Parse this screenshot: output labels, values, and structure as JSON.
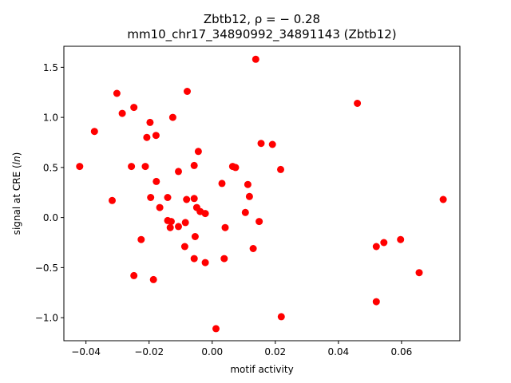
{
  "chart_data": {
    "type": "scatter",
    "title_line1": "Zbtb12, ρ = − 0.28",
    "title_line2": "mm10_chr17_34890992_34891143 (Zbtb12)",
    "xlabel": "motif activity",
    "ylabel": "signal at CRE (ln)",
    "xlim": [
      -0.047,
      0.0785
    ],
    "ylim": [
      -1.23,
      1.71
    ],
    "x_ticks": [
      -0.04,
      -0.02,
      0.0,
      0.02,
      0.04,
      0.06
    ],
    "x_tick_labels": [
      "−0.04",
      "−0.02",
      "0.00",
      "0.02",
      "0.04",
      "0.06"
    ],
    "y_ticks": [
      -1.0,
      -0.5,
      0.0,
      0.5,
      1.0,
      1.5
    ],
    "y_tick_labels": [
      "−1.0",
      "−0.5",
      "0.0",
      "0.5",
      "1.0",
      "1.5"
    ],
    "grid": false,
    "marker_color": "#ff0000",
    "points": [
      {
        "x": 0.0138,
        "y": 1.58
      },
      {
        "x": 0.046,
        "y": 1.14
      },
      {
        "x": -0.0079,
        "y": 1.26
      },
      {
        "x": -0.0302,
        "y": 1.24
      },
      {
        "x": -0.0248,
        "y": 1.1
      },
      {
        "x": -0.0285,
        "y": 1.04
      },
      {
        "x": -0.0125,
        "y": 1.0
      },
      {
        "x": -0.0197,
        "y": 0.95
      },
      {
        "x": -0.0373,
        "y": 0.86
      },
      {
        "x": -0.0178,
        "y": 0.82
      },
      {
        "x": -0.0207,
        "y": 0.8
      },
      {
        "x": 0.0155,
        "y": 0.74
      },
      {
        "x": 0.0191,
        "y": 0.73
      },
      {
        "x": -0.0044,
        "y": 0.66
      },
      {
        "x": -0.042,
        "y": 0.51
      },
      {
        "x": -0.0256,
        "y": 0.51
      },
      {
        "x": -0.0212,
        "y": 0.51
      },
      {
        "x": -0.0057,
        "y": 0.52
      },
      {
        "x": 0.0065,
        "y": 0.51
      },
      {
        "x": 0.0074,
        "y": 0.5
      },
      {
        "x": 0.0217,
        "y": 0.48
      },
      {
        "x": -0.0107,
        "y": 0.46
      },
      {
        "x": -0.0177,
        "y": 0.36
      },
      {
        "x": 0.0031,
        "y": 0.34
      },
      {
        "x": 0.0113,
        "y": 0.33
      },
      {
        "x": -0.0317,
        "y": 0.17
      },
      {
        "x": -0.0195,
        "y": 0.2
      },
      {
        "x": -0.0141,
        "y": 0.2
      },
      {
        "x": -0.0081,
        "y": 0.18
      },
      {
        "x": -0.0057,
        "y": 0.19
      },
      {
        "x": 0.0118,
        "y": 0.21
      },
      {
        "x": 0.0732,
        "y": 0.18
      },
      {
        "x": -0.0166,
        "y": 0.1
      },
      {
        "x": -0.0049,
        "y": 0.1
      },
      {
        "x": -0.0038,
        "y": 0.06
      },
      {
        "x": -0.0022,
        "y": 0.04
      },
      {
        "x": 0.0105,
        "y": 0.05
      },
      {
        "x": -0.0141,
        "y": -0.03
      },
      {
        "x": -0.013,
        "y": -0.04
      },
      {
        "x": -0.0085,
        "y": -0.05
      },
      {
        "x": -0.0107,
        "y": -0.09
      },
      {
        "x": -0.0133,
        "y": -0.1
      },
      {
        "x": 0.0041,
        "y": -0.1
      },
      {
        "x": 0.0149,
        "y": -0.04
      },
      {
        "x": -0.0225,
        "y": -0.22
      },
      {
        "x": -0.0054,
        "y": -0.19
      },
      {
        "x": -0.0087,
        "y": -0.29
      },
      {
        "x": 0.013,
        "y": -0.31
      },
      {
        "x": 0.052,
        "y": -0.29
      },
      {
        "x": 0.0544,
        "y": -0.25
      },
      {
        "x": 0.0597,
        "y": -0.22
      },
      {
        "x": -0.0057,
        "y": -0.41
      },
      {
        "x": 0.0038,
        "y": -0.41
      },
      {
        "x": -0.0022,
        "y": -0.45
      },
      {
        "x": -0.0248,
        "y": -0.58
      },
      {
        "x": -0.0186,
        "y": -0.62
      },
      {
        "x": 0.0656,
        "y": -0.55
      },
      {
        "x": 0.052,
        "y": -0.84
      },
      {
        "x": 0.0219,
        "y": -0.99
      },
      {
        "x": 0.0012,
        "y": -1.11
      }
    ]
  }
}
